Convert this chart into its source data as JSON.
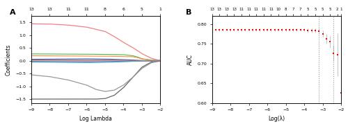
{
  "panel_A": {
    "top_axis_positions": [
      -9,
      -8,
      -7,
      -6,
      -5,
      -4,
      -3,
      -2
    ],
    "top_axis_labels": [
      "13",
      "13",
      "11",
      "11",
      "8",
      "6",
      "5",
      "1"
    ],
    "xlabel": "Log Lambda",
    "ylabel": "Coefficients",
    "xlim": [
      -9,
      -2
    ],
    "ylim": [
      -1.65,
      1.75
    ],
    "yticks": [
      -1.5,
      -1.0,
      -0.5,
      0.0,
      0.5,
      1.0,
      1.5
    ]
  },
  "panel_B": {
    "log_lambda_values": [
      -9.0,
      -8.8,
      -8.6,
      -8.4,
      -8.2,
      -8.0,
      -7.8,
      -7.6,
      -7.4,
      -7.2,
      -7.0,
      -6.8,
      -6.6,
      -6.4,
      -6.2,
      -6.0,
      -5.8,
      -5.6,
      -5.4,
      -5.2,
      -5.0,
      -4.8,
      -4.6,
      -4.4,
      -4.2,
      -4.0,
      -3.8,
      -3.6,
      -3.4,
      -3.2,
      -3.0,
      -2.8,
      -2.6,
      -2.4,
      -2.2,
      -2.0
    ],
    "auc_values": [
      0.785,
      0.785,
      0.785,
      0.785,
      0.785,
      0.785,
      0.785,
      0.785,
      0.785,
      0.785,
      0.785,
      0.785,
      0.785,
      0.785,
      0.785,
      0.785,
      0.785,
      0.785,
      0.785,
      0.785,
      0.785,
      0.785,
      0.785,
      0.785,
      0.785,
      0.785,
      0.784,
      0.783,
      0.783,
      0.782,
      0.775,
      0.762,
      0.755,
      0.726,
      0.722,
      0.625
    ],
    "auc_se": [
      0.004,
      0.004,
      0.004,
      0.004,
      0.004,
      0.004,
      0.004,
      0.004,
      0.004,
      0.004,
      0.004,
      0.004,
      0.004,
      0.004,
      0.004,
      0.004,
      0.004,
      0.004,
      0.004,
      0.004,
      0.004,
      0.004,
      0.004,
      0.004,
      0.004,
      0.004,
      0.005,
      0.005,
      0.005,
      0.006,
      0.008,
      0.012,
      0.015,
      0.02,
      0.055,
      0.1
    ],
    "top_axis_labels": [
      "13",
      "13",
      "13",
      "13",
      "11",
      "11",
      "11",
      "11",
      "11",
      "10",
      "8",
      "7",
      "7",
      "5",
      "5",
      "5",
      "5",
      "2",
      "1"
    ],
    "top_axis_positions": [
      -9.0,
      -8.6,
      -8.2,
      -7.8,
      -7.4,
      -7.0,
      -6.6,
      -6.2,
      -5.8,
      -5.4,
      -5.0,
      -4.6,
      -4.2,
      -3.8,
      -3.4,
      -3.0,
      -2.6,
      -2.2,
      -2.0
    ],
    "vline1": -3.2,
    "vline2": -2.4,
    "xlabel": "Log(λ)",
    "ylabel": "AUC",
    "xlim": [
      -9,
      -2
    ],
    "ylim": [
      0.6,
      0.82
    ],
    "yticks": [
      0.6,
      0.65,
      0.7,
      0.75,
      0.8
    ],
    "dot_color": "#FF0000",
    "vline_color": "#999999"
  },
  "figure_bg": "#FFFFFF",
  "label_A": "A",
  "label_B": "B"
}
